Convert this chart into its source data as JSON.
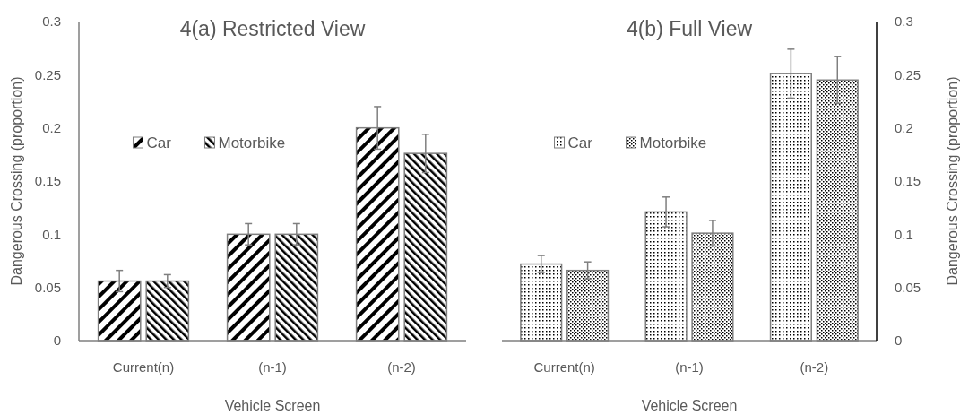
{
  "chart_data": [
    {
      "type": "bar",
      "title": "4(a) Restricted View",
      "xlabel": "Vehicle Screen",
      "ylabel": "Dangerous Crossing (proportion)",
      "categories": [
        "Current(n)",
        "(n-1)",
        "(n-2)"
      ],
      "ylim": [
        0,
        0.3
      ],
      "yticks": [
        0,
        0.05,
        0.1,
        0.15,
        0.2,
        0.25,
        0.3
      ],
      "grid": false,
      "legend": "top left",
      "series": [
        {
          "name": "Car",
          "color": "#7f7f7f",
          "values": [
            0.056,
            0.1,
            0.2
          ],
          "errors": [
            0.01,
            0.01,
            0.02
          ]
        },
        {
          "name": "Motorbike",
          "color": "#7f7f7f",
          "values": [
            0.056,
            0.1,
            0.176
          ],
          "errors": [
            0.006,
            0.01,
            0.018
          ]
        }
      ]
    },
    {
      "type": "bar",
      "title": "4(b) Full View",
      "xlabel": "Vehicle Screen",
      "y2label": "Dangerous Crossing (proportion)",
      "categories": [
        "Current(n)",
        "(n-1)",
        "(n-2)"
      ],
      "y2lim": [
        0,
        0.3
      ],
      "y2ticks": [
        0,
        0.05,
        0.1,
        0.15,
        0.2,
        0.25,
        0.3
      ],
      "grid": false,
      "legend": "top left",
      "series": [
        {
          "name": "Car",
          "color": "#7f7f7f",
          "axis": "y2",
          "values": [
            0.072,
            0.121,
            0.251
          ],
          "errors": [
            0.008,
            0.014,
            0.023
          ]
        },
        {
          "name": "Motorbike",
          "color": "#7f7f7f",
          "axis": "y2",
          "values": [
            0.066,
            0.101,
            0.245
          ],
          "errors": [
            0.008,
            0.012,
            0.022
          ]
        }
      ]
    }
  ]
}
